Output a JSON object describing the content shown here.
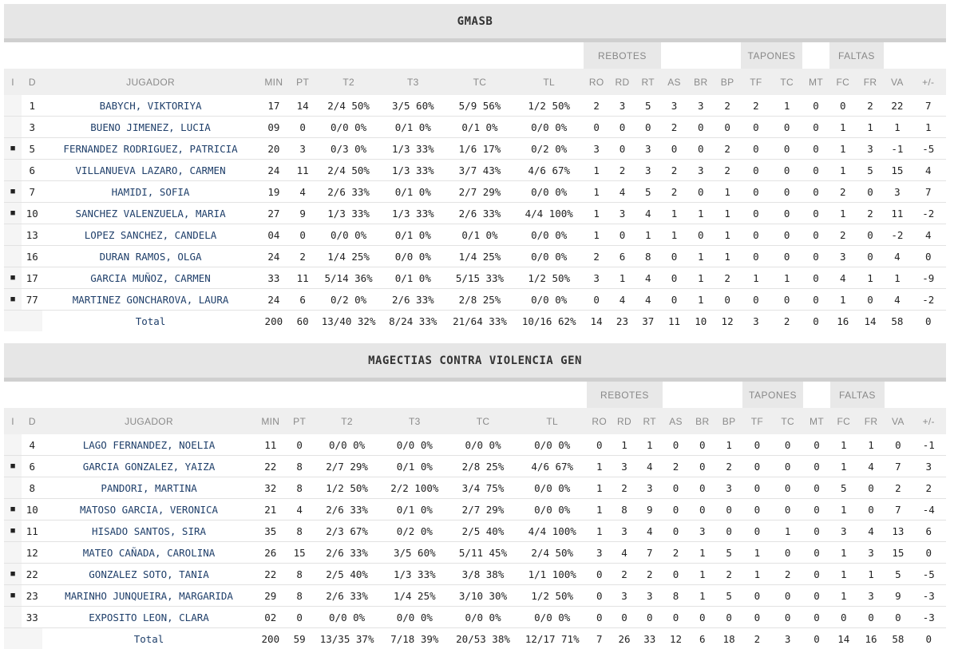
{
  "groups": {
    "rebotes": "REBOTES",
    "tapones": "TAPONES",
    "faltas": "FALTAS"
  },
  "columns": [
    "I",
    "D",
    "JUGADOR",
    "MIN",
    "PT",
    "T2",
    "T3",
    "TC",
    "TL",
    "RO",
    "RD",
    "RT",
    "AS",
    "BR",
    "BP",
    "TF",
    "TC",
    "MT",
    "FC",
    "FR",
    "VA",
    "+/-"
  ],
  "starter_marker": "■",
  "teams": [
    {
      "name": "GMASB",
      "players": [
        {
          "i": "",
          "d": "1",
          "name": "BABYCH, VIKTORIYA",
          "min": "17",
          "pt": "14",
          "t2": "2/4 50%",
          "t3": "3/5 60%",
          "tc": "5/9 56%",
          "tl": "1/2 50%",
          "ro": "2",
          "rd": "3",
          "rt": "5",
          "as": "3",
          "br": "3",
          "bp": "2",
          "tf": "2",
          "tcp": "1",
          "mt": "0",
          "fc": "0",
          "fr": "2",
          "va": "22",
          "pm": "7"
        },
        {
          "i": "",
          "d": "3",
          "name": "BUENO JIMENEZ, LUCIA",
          "min": "09",
          "pt": "0",
          "t2": "0/0 0%",
          "t3": "0/1 0%",
          "tc": "0/1 0%",
          "tl": "0/0 0%",
          "ro": "0",
          "rd": "0",
          "rt": "0",
          "as": "2",
          "br": "0",
          "bp": "0",
          "tf": "0",
          "tcp": "0",
          "mt": "0",
          "fc": "1",
          "fr": "1",
          "va": "1",
          "pm": "1"
        },
        {
          "i": "■",
          "d": "5",
          "name": "FERNANDEZ RODRIGUEZ, PATRICIA",
          "min": "20",
          "pt": "3",
          "t2": "0/3 0%",
          "t3": "1/3 33%",
          "tc": "1/6 17%",
          "tl": "0/2 0%",
          "ro": "3",
          "rd": "0",
          "rt": "3",
          "as": "0",
          "br": "0",
          "bp": "2",
          "tf": "0",
          "tcp": "0",
          "mt": "0",
          "fc": "1",
          "fr": "3",
          "va": "-1",
          "pm": "-5"
        },
        {
          "i": "",
          "d": "6",
          "name": "VILLANUEVA LAZARO, CARMEN",
          "min": "24",
          "pt": "11",
          "t2": "2/4 50%",
          "t3": "1/3 33%",
          "tc": "3/7 43%",
          "tl": "4/6 67%",
          "ro": "1",
          "rd": "2",
          "rt": "3",
          "as": "2",
          "br": "3",
          "bp": "2",
          "tf": "0",
          "tcp": "0",
          "mt": "0",
          "fc": "1",
          "fr": "5",
          "va": "15",
          "pm": "4"
        },
        {
          "i": "■",
          "d": "7",
          "name": "HAMIDI, SOFIA",
          "min": "19",
          "pt": "4",
          "t2": "2/6 33%",
          "t3": "0/1 0%",
          "tc": "2/7 29%",
          "tl": "0/0 0%",
          "ro": "1",
          "rd": "4",
          "rt": "5",
          "as": "2",
          "br": "0",
          "bp": "1",
          "tf": "0",
          "tcp": "0",
          "mt": "0",
          "fc": "2",
          "fr": "0",
          "va": "3",
          "pm": "7"
        },
        {
          "i": "■",
          "d": "10",
          "name": "SANCHEZ VALENZUELA, MARIA",
          "min": "27",
          "pt": "9",
          "t2": "1/3 33%",
          "t3": "1/3 33%",
          "tc": "2/6 33%",
          "tl": "4/4 100%",
          "ro": "1",
          "rd": "3",
          "rt": "4",
          "as": "1",
          "br": "1",
          "bp": "1",
          "tf": "0",
          "tcp": "0",
          "mt": "0",
          "fc": "1",
          "fr": "2",
          "va": "11",
          "pm": "-2"
        },
        {
          "i": "",
          "d": "13",
          "name": "LOPEZ SANCHEZ, CANDELA",
          "min": "04",
          "pt": "0",
          "t2": "0/0 0%",
          "t3": "0/1 0%",
          "tc": "0/1 0%",
          "tl": "0/0 0%",
          "ro": "1",
          "rd": "0",
          "rt": "1",
          "as": "1",
          "br": "0",
          "bp": "1",
          "tf": "0",
          "tcp": "0",
          "mt": "0",
          "fc": "2",
          "fr": "0",
          "va": "-2",
          "pm": "4"
        },
        {
          "i": "",
          "d": "16",
          "name": "DURAN RAMOS, OLGA",
          "min": "24",
          "pt": "2",
          "t2": "1/4 25%",
          "t3": "0/0 0%",
          "tc": "1/4 25%",
          "tl": "0/0 0%",
          "ro": "2",
          "rd": "6",
          "rt": "8",
          "as": "0",
          "br": "1",
          "bp": "1",
          "tf": "0",
          "tcp": "0",
          "mt": "0",
          "fc": "3",
          "fr": "0",
          "va": "4",
          "pm": "0"
        },
        {
          "i": "■",
          "d": "17",
          "name": "GARCIA MUÑOZ, CARMEN",
          "min": "33",
          "pt": "11",
          "t2": "5/14 36%",
          "t3": "0/1 0%",
          "tc": "5/15 33%",
          "tl": "1/2 50%",
          "ro": "3",
          "rd": "1",
          "rt": "4",
          "as": "0",
          "br": "1",
          "bp": "2",
          "tf": "1",
          "tcp": "1",
          "mt": "0",
          "fc": "4",
          "fr": "1",
          "va": "1",
          "pm": "-9"
        },
        {
          "i": "■",
          "d": "77",
          "name": "MARTINEZ GONCHAROVA, LAURA",
          "min": "24",
          "pt": "6",
          "t2": "0/2 0%",
          "t3": "2/6 33%",
          "tc": "2/8 25%",
          "tl": "0/0 0%",
          "ro": "0",
          "rd": "4",
          "rt": "4",
          "as": "0",
          "br": "1",
          "bp": "0",
          "tf": "0",
          "tcp": "0",
          "mt": "0",
          "fc": "1",
          "fr": "0",
          "va": "4",
          "pm": "-2"
        }
      ],
      "total": {
        "label": "Total",
        "min": "200",
        "pt": "60",
        "t2": "13/40 32%",
        "t3": "8/24 33%",
        "tc": "21/64 33%",
        "tl": "10/16 62%",
        "ro": "14",
        "rd": "23",
        "rt": "37",
        "as": "11",
        "br": "10",
        "bp": "12",
        "tf": "3",
        "tcp": "2",
        "mt": "0",
        "fc": "16",
        "fr": "14",
        "va": "58",
        "pm": "0"
      }
    },
    {
      "name": "MAGECTIAS CONTRA VIOLENCIA GEN",
      "players": [
        {
          "i": "",
          "d": "4",
          "name": "LAGO FERNANDEZ, NOELIA",
          "min": "11",
          "pt": "0",
          "t2": "0/0 0%",
          "t3": "0/0 0%",
          "tc": "0/0 0%",
          "tl": "0/0 0%",
          "ro": "0",
          "rd": "1",
          "rt": "1",
          "as": "0",
          "br": "0",
          "bp": "1",
          "tf": "0",
          "tcp": "0",
          "mt": "0",
          "fc": "1",
          "fr": "1",
          "va": "0",
          "pm": "-1"
        },
        {
          "i": "■",
          "d": "6",
          "name": "GARCIA GONZALEZ, YAIZA",
          "min": "22",
          "pt": "8",
          "t2": "2/7 29%",
          "t3": "0/1 0%",
          "tc": "2/8 25%",
          "tl": "4/6 67%",
          "ro": "1",
          "rd": "3",
          "rt": "4",
          "as": "2",
          "br": "0",
          "bp": "2",
          "tf": "0",
          "tcp": "0",
          "mt": "0",
          "fc": "1",
          "fr": "4",
          "va": "7",
          "pm": "3"
        },
        {
          "i": "",
          "d": "8",
          "name": "PANDORI, MARTINA",
          "min": "32",
          "pt": "8",
          "t2": "1/2 50%",
          "t3": "2/2 100%",
          "tc": "3/4 75%",
          "tl": "0/0 0%",
          "ro": "1",
          "rd": "2",
          "rt": "3",
          "as": "0",
          "br": "0",
          "bp": "3",
          "tf": "0",
          "tcp": "0",
          "mt": "0",
          "fc": "5",
          "fr": "0",
          "va": "2",
          "pm": "2"
        },
        {
          "i": "■",
          "d": "10",
          "name": "MATOSO GARCIA, VERONICA",
          "min": "21",
          "pt": "4",
          "t2": "2/6 33%",
          "t3": "0/1 0%",
          "tc": "2/7 29%",
          "tl": "0/0 0%",
          "ro": "1",
          "rd": "8",
          "rt": "9",
          "as": "0",
          "br": "0",
          "bp": "0",
          "tf": "0",
          "tcp": "0",
          "mt": "0",
          "fc": "1",
          "fr": "0",
          "va": "7",
          "pm": "-4"
        },
        {
          "i": "■",
          "d": "11",
          "name": "HISADO SANTOS, SIRA",
          "min": "35",
          "pt": "8",
          "t2": "2/3 67%",
          "t3": "0/2 0%",
          "tc": "2/5 40%",
          "tl": "4/4 100%",
          "ro": "1",
          "rd": "3",
          "rt": "4",
          "as": "0",
          "br": "3",
          "bp": "0",
          "tf": "0",
          "tcp": "1",
          "mt": "0",
          "fc": "3",
          "fr": "4",
          "va": "13",
          "pm": "6"
        },
        {
          "i": "",
          "d": "12",
          "name": "MATEO CAÑADA, CAROLINA",
          "min": "26",
          "pt": "15",
          "t2": "2/6 33%",
          "t3": "3/5 60%",
          "tc": "5/11 45%",
          "tl": "2/4 50%",
          "ro": "3",
          "rd": "4",
          "rt": "7",
          "as": "2",
          "br": "1",
          "bp": "5",
          "tf": "1",
          "tcp": "0",
          "mt": "0",
          "fc": "1",
          "fr": "3",
          "va": "15",
          "pm": "0"
        },
        {
          "i": "■",
          "d": "22",
          "name": "GONZALEZ SOTO, TANIA",
          "min": "22",
          "pt": "8",
          "t2": "2/5 40%",
          "t3": "1/3 33%",
          "tc": "3/8 38%",
          "tl": "1/1 100%",
          "ro": "0",
          "rd": "2",
          "rt": "2",
          "as": "0",
          "br": "1",
          "bp": "2",
          "tf": "1",
          "tcp": "2",
          "mt": "0",
          "fc": "1",
          "fr": "1",
          "va": "5",
          "pm": "-5"
        },
        {
          "i": "■",
          "d": "23",
          "name": "MARINHO JUNQUEIRA, MARGARIDA",
          "min": "29",
          "pt": "8",
          "t2": "2/6 33%",
          "t3": "1/4 25%",
          "tc": "3/10 30%",
          "tl": "1/2 50%",
          "ro": "0",
          "rd": "3",
          "rt": "3",
          "as": "8",
          "br": "1",
          "bp": "5",
          "tf": "0",
          "tcp": "0",
          "mt": "0",
          "fc": "1",
          "fr": "3",
          "va": "9",
          "pm": "-3"
        },
        {
          "i": "",
          "d": "33",
          "name": "EXPOSITO LEON, CLARA",
          "min": "02",
          "pt": "0",
          "t2": "0/0 0%",
          "t3": "0/0 0%",
          "tc": "0/0 0%",
          "tl": "0/0 0%",
          "ro": "0",
          "rd": "0",
          "rt": "0",
          "as": "0",
          "br": "0",
          "bp": "0",
          "tf": "0",
          "tcp": "0",
          "mt": "0",
          "fc": "0",
          "fr": "0",
          "va": "0",
          "pm": "-3"
        }
      ],
      "total": {
        "label": "Total",
        "min": "200",
        "pt": "59",
        "t2": "13/35 37%",
        "t3": "7/18 39%",
        "tc": "20/53 38%",
        "tl": "12/17 71%",
        "ro": "7",
        "rd": "26",
        "rt": "33",
        "as": "12",
        "br": "6",
        "bp": "18",
        "tf": "2",
        "tcp": "3",
        "mt": "0",
        "fc": "14",
        "fr": "16",
        "va": "58",
        "pm": "0"
      }
    }
  ]
}
